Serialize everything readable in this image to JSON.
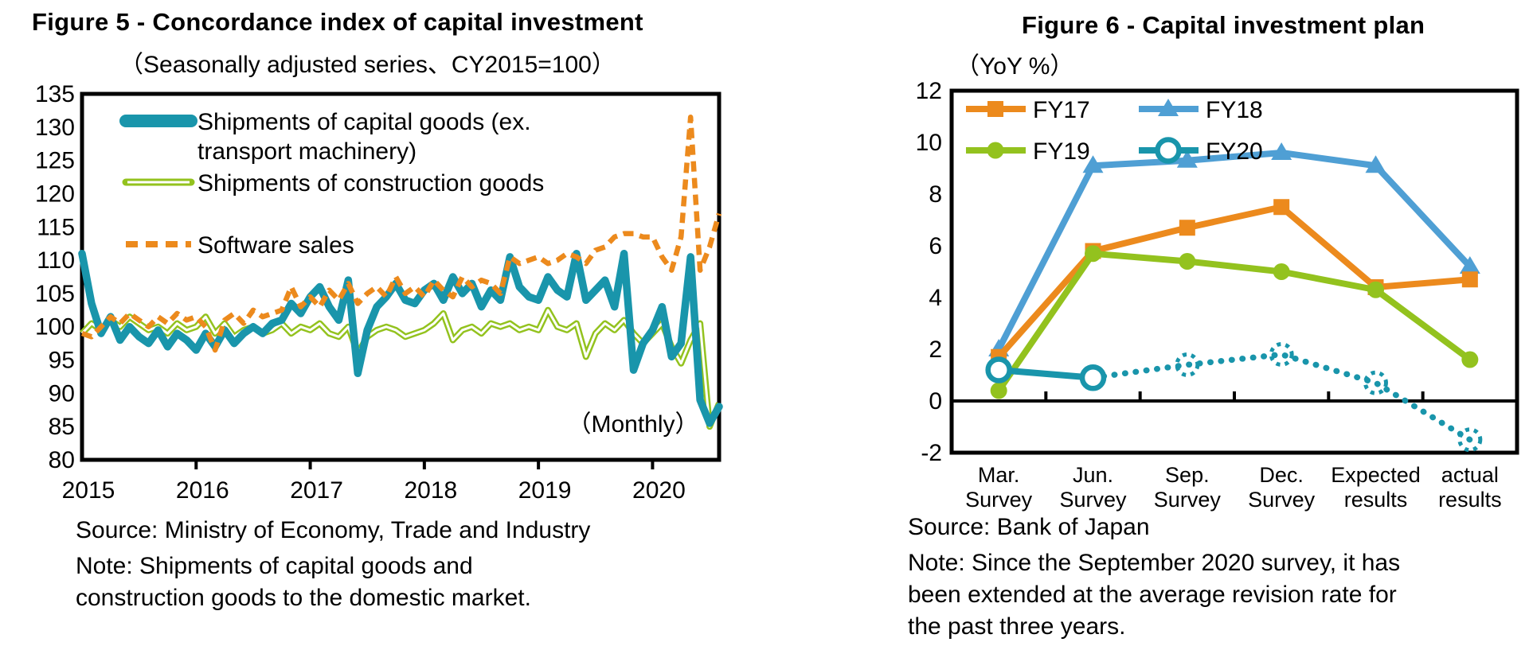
{
  "chart_data": [
    {
      "id": "figure5",
      "type": "line",
      "title": "Figure 5 - Concordance index of capital investment",
      "subtitle": "（Seasonally adjusted series、CY2015=100）",
      "inner_label": "（Monthly）",
      "source": "Source: Ministry of Economy, Trade and Industry",
      "note_lines": [
        "Note: Shipments of capital goods and",
        "construction goods to the domestic market."
      ],
      "x_tick_labels": [
        "2015",
        "2016",
        "2017",
        "2018",
        "2019",
        "2020"
      ],
      "x_frequency": "monthly",
      "ylim": [
        80,
        135
      ],
      "y_ticks": [
        80,
        85,
        90,
        95,
        100,
        105,
        110,
        115,
        120,
        125,
        130,
        135
      ],
      "grid": false,
      "legend_position": "top-left-inside",
      "series": [
        {
          "name": "Shipments of capital goods (ex. transport machinery)",
          "legend_lines": [
            "Shipments of capital goods (ex.",
            "transport machinery)"
          ],
          "color": "#1995AB",
          "style": "thick-solid",
          "values": [
            111,
            103.5,
            99,
            101.5,
            98,
            100,
            98.5,
            97.5,
            99.5,
            97,
            99,
            98,
            96.5,
            99,
            97,
            99.5,
            97.5,
            99,
            100,
            99,
            100.5,
            101,
            103.5,
            102,
            104.5,
            106,
            103,
            101,
            107,
            93,
            99.5,
            103,
            104.5,
            106.5,
            104,
            103.5,
            105.5,
            106.5,
            104,
            107.5,
            105,
            106.5,
            103,
            105.5,
            104,
            110.5,
            106,
            104.5,
            104,
            107.5,
            105.5,
            104.5,
            111,
            104,
            105.5,
            107,
            103,
            111,
            93.5,
            97.5,
            99.5,
            103,
            95.5,
            97.5,
            110.5,
            89,
            85.5,
            88
          ]
        },
        {
          "name": "Shipments of construction goods",
          "legend_lines": [
            "Shipments of construction goods"
          ],
          "color": "#93C21E",
          "style": "double-line",
          "values": [
            99,
            100.5,
            99.5,
            101,
            100,
            101.5,
            100.5,
            99.5,
            100,
            99,
            100.5,
            99.5,
            100,
            101.5,
            99,
            100.5,
            98.5,
            99.5,
            100,
            99,
            99.5,
            100.5,
            99,
            100,
            99.5,
            100.5,
            99,
            98.5,
            100,
            96,
            98.5,
            99.5,
            100,
            99.5,
            98.5,
            99,
            99.5,
            100.5,
            102,
            98,
            99.5,
            100,
            99,
            100.5,
            100,
            100.5,
            99.5,
            100,
            99.5,
            102.5,
            100,
            99.5,
            100.5,
            95.5,
            99,
            100.5,
            99.5,
            101,
            99,
            97.5,
            99,
            100.5,
            97,
            94.5,
            98,
            100.5,
            85,
            88.5
          ]
        },
        {
          "name": "Software sales",
          "legend_lines": [
            "Software sales"
          ],
          "color": "#EC8A1D",
          "style": "dashed",
          "values": [
            99,
            98.5,
            100,
            101.5,
            100.5,
            102,
            101,
            100,
            101.5,
            100.5,
            102,
            101,
            101.5,
            100,
            96.5,
            101,
            102,
            100.5,
            102.5,
            101.5,
            102,
            102.5,
            106,
            103,
            104.5,
            103,
            105.5,
            104,
            106.5,
            103.5,
            105,
            106,
            104.5,
            107.5,
            105,
            106,
            104.5,
            107,
            105.5,
            104.5,
            107.5,
            106,
            107,
            106.5,
            105,
            110.5,
            109.5,
            110,
            110.5,
            109.5,
            110,
            111,
            110.5,
            109.5,
            111.5,
            112,
            113.5,
            114,
            114,
            113.5,
            113.5,
            110.5,
            108.5,
            113.5,
            131.5,
            108.5,
            112,
            117
          ]
        }
      ]
    },
    {
      "id": "figure6",
      "type": "line",
      "title": "Figure 6 - Capital investment plan",
      "subtitle": "（YoY %）",
      "source": "Source: Bank of Japan",
      "note_lines": [
        "Note: Since the September 2020 survey, it has",
        "been extended at the average revision rate for",
        "the past three years."
      ],
      "categories": [
        {
          "line1": "Mar.",
          "line2": "Survey"
        },
        {
          "line1": "Jun.",
          "line2": "Survey"
        },
        {
          "line1": "Sep.",
          "line2": "Survey"
        },
        {
          "line1": "Dec.",
          "line2": "Survey"
        },
        {
          "line1": "Expected",
          "line2": "results"
        },
        {
          "line1": "actual",
          "line2": "results"
        }
      ],
      "ylim": [
        -2,
        12
      ],
      "y_ticks": [
        -2,
        0,
        2,
        4,
        6,
        8,
        10,
        12
      ],
      "grid": false,
      "legend_position": "top-inside-two-columns",
      "series": [
        {
          "name": "FY17",
          "color": "#EC8A1D",
          "marker": "square",
          "line": "solid",
          "values": [
            1.7,
            5.8,
            6.7,
            7.5,
            4.4,
            4.7
          ]
        },
        {
          "name": "FY18",
          "color": "#4F9FD4",
          "marker": "triangle",
          "line": "solid",
          "values": [
            2.0,
            9.1,
            9.3,
            9.6,
            9.1,
            5.2
          ]
        },
        {
          "name": "FY19",
          "color": "#93C21E",
          "marker": "circle",
          "line": "solid",
          "values": [
            0.4,
            5.7,
            5.4,
            5.0,
            4.3,
            1.6
          ]
        },
        {
          "name": "FY20",
          "color": "#1995AB",
          "marker": "open-circle",
          "line": "dotted-after-jun",
          "dotted_from_index": 1,
          "sketch_markers_from_index": 2,
          "values": [
            1.2,
            0.9,
            1.4,
            1.8,
            0.7,
            -1.5
          ]
        }
      ]
    }
  ]
}
